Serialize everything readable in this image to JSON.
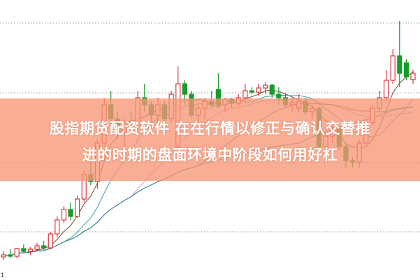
{
  "title": {
    "line1": "股指期货配资软件 在在行情以修正与确认交替推",
    "line2": "进的时期的盘面环境中阶段如何用好杠"
  },
  "chart_data": {
    "type": "candlestick",
    "title": "股指期货配资软件 在在行情以修正与确认交替推进的时期的盘面环境中阶段如何用好杠",
    "xlabel": "",
    "ylabel": "",
    "ylim": [
      0,
      40
    ],
    "grid": "horizontal-dotted",
    "y_tick_labels": [
      "1"
    ],
    "colors": {
      "up": "#d9363e",
      "down": "#1a9a2a",
      "ma_lines": [
        "#7a4a2a",
        "#3aa9b0",
        "#e88ad0",
        "#4a8a3a",
        "#2e8a9a"
      ],
      "banner": "#f6a183"
    },
    "moving_average_periods": [
      5,
      10,
      20,
      30,
      45
    ],
    "candles": [
      [
        3.2,
        4.0,
        2.8,
        3.5
      ],
      [
        3.5,
        4.3,
        3.0,
        3.3
      ],
      [
        3.3,
        4.5,
        3.0,
        4.4
      ],
      [
        4.4,
        5.0,
        3.8,
        4.0
      ],
      [
        4.0,
        4.6,
        3.5,
        4.3
      ],
      [
        4.3,
        5.2,
        4.0,
        4.8
      ],
      [
        4.8,
        5.5,
        4.2,
        4.5
      ],
      [
        4.5,
        6.8,
        4.3,
        6.5
      ],
      [
        6.5,
        9.0,
        6.0,
        8.5
      ],
      [
        8.5,
        10.5,
        8.0,
        10.0
      ],
      [
        10.0,
        11.0,
        8.5,
        9.0
      ],
      [
        9.0,
        12.0,
        8.8,
        11.5
      ],
      [
        11.5,
        15.5,
        11.0,
        15.0
      ],
      [
        15.0,
        17.0,
        13.5,
        14.0
      ],
      [
        14.0,
        20.0,
        13.0,
        19.5
      ],
      [
        19.5,
        26.0,
        19.0,
        25.0
      ],
      [
        25.0,
        27.0,
        22.0,
        23.0
      ],
      [
        23.0,
        24.0,
        20.0,
        21.0
      ],
      [
        21.0,
        23.0,
        18.0,
        22.5
      ],
      [
        22.5,
        24.0,
        21.0,
        22.0
      ],
      [
        22.0,
        27.0,
        21.0,
        26.0
      ],
      [
        26.0,
        28.0,
        24.0,
        25.0
      ],
      [
        25.0,
        25.5,
        22.5,
        23.5
      ],
      [
        23.5,
        26.0,
        22.0,
        25.0
      ],
      [
        25.0,
        25.5,
        22.0,
        23.0
      ],
      [
        23.0,
        27.0,
        22.5,
        26.5
      ],
      [
        19.0,
        30.5,
        18.0,
        28.0
      ],
      [
        28.0,
        28.5,
        25.0,
        26.5
      ],
      [
        26.5,
        27.0,
        23.0,
        23.5
      ],
      [
        23.5,
        25.0,
        22.0,
        24.5
      ],
      [
        24.5,
        26.0,
        23.0,
        25.5
      ],
      [
        25.5,
        27.0,
        24.5,
        25.0
      ],
      [
        27.2,
        29.5,
        24.5,
        25.0
      ],
      [
        25.0,
        26.0,
        24.0,
        25.8
      ],
      [
        25.8,
        26.0,
        24.5,
        25.2
      ],
      [
        25.2,
        26.5,
        24.8,
        26.0
      ],
      [
        26.0,
        28.0,
        25.5,
        27.0
      ],
      [
        27.0,
        27.5,
        26.5,
        26.8
      ],
      [
        26.8,
        28.0,
        26.3,
        27.4
      ],
      [
        27.4,
        28.2,
        26.5,
        27.8
      ],
      [
        27.8,
        28.0,
        26.0,
        26.5
      ],
      [
        26.5,
        27.5,
        25.0,
        26.0
      ],
      [
        26.0,
        26.5,
        24.5,
        25.0
      ],
      [
        25.0,
        26.0,
        24.0,
        25.3
      ],
      [
        24.5,
        26.5,
        24.0,
        25.5
      ],
      [
        25.5,
        26.0,
        23.5,
        24.0
      ],
      [
        24.0,
        25.0,
        23.0,
        24.5
      ],
      [
        24.5,
        24.8,
        18.0,
        19.0
      ],
      [
        19.0,
        21.0,
        18.5,
        20.5
      ],
      [
        20.5,
        22.0,
        19.5,
        21.5
      ],
      [
        21.5,
        22.0,
        18.5,
        19.0
      ],
      [
        19.0,
        19.5,
        16.0,
        17.0
      ],
      [
        17.0,
        17.5,
        16.0,
        16.8
      ],
      [
        16.8,
        20.0,
        16.0,
        19.5
      ],
      [
        19.5,
        23.0,
        19.0,
        22.5
      ],
      [
        22.5,
        25.0,
        22.0,
        24.5
      ],
      [
        24.5,
        27.0,
        24.0,
        26.0
      ],
      [
        26.0,
        30.0,
        25.5,
        28.5
      ],
      [
        28.5,
        33.0,
        28.0,
        32.0
      ],
      [
        32.0,
        37.0,
        27.5,
        29.5
      ],
      [
        31.0,
        31.5,
        28.5,
        29.0
      ],
      [
        28.6,
        30.0,
        28.0,
        29.5
      ]
    ]
  }
}
